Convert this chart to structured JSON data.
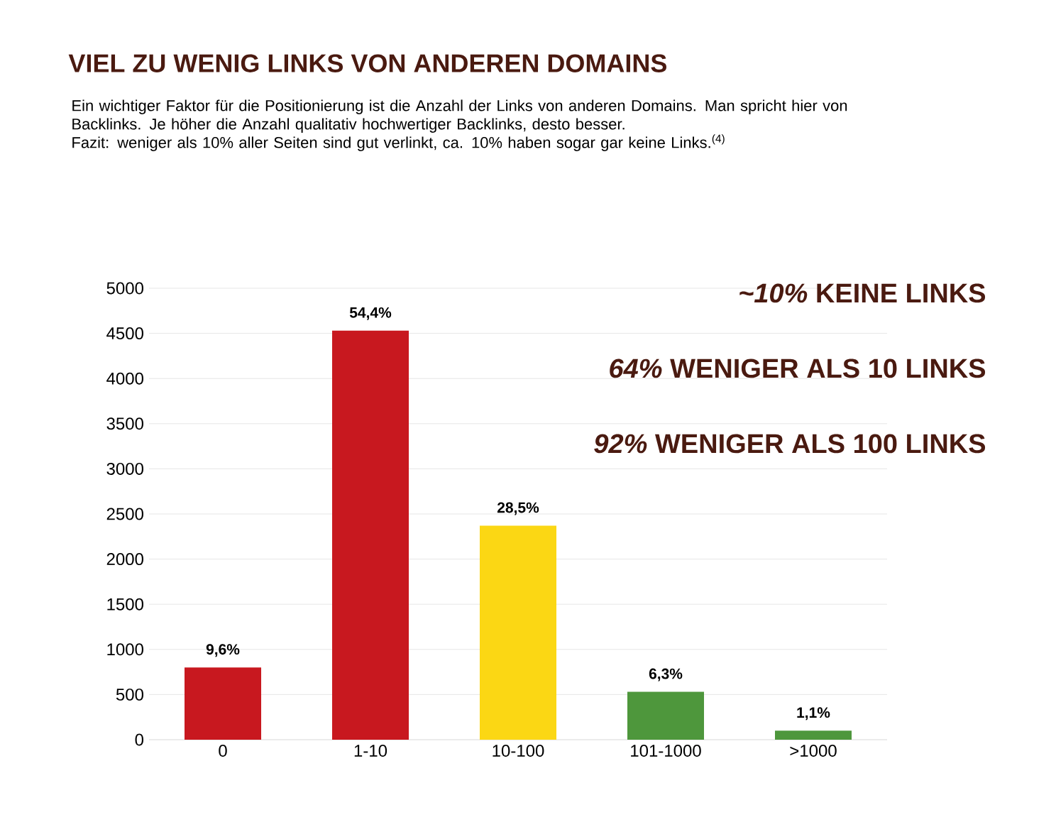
{
  "chart_data": {
    "type": "bar",
    "title": "VIEL ZU WENIG LINKS VON ANDEREN DOMAINS",
    "subtitle": "Ein wichtiger Faktor für die Positionierung ist die Anzahl der Links von anderen Domains. Man spricht hier von Backlinks. Je höher die Anzahl qualitativ hochwertiger Backlinks, desto besser.\nFazit: weniger als 10% aller Seiten sind gut verlinkt, ca. 10% haben sogar gar keine Links.$^{(4)}$",
    "categories": [
      "0",
      "1-10",
      "10-100",
      "101-1000",
      ">1000"
    ],
    "values": [
      800,
      4530,
      2370,
      530,
      100
    ],
    "colors": [
      "#c8181f",
      "#c8181f",
      "#fbd714",
      "#4e973c",
      "#4e973c"
    ],
    "ylim": [
      0,
      5000
    ],
    "yticks": [
      0,
      500,
      1000,
      1500,
      2000,
      2500,
      3000,
      3500,
      4000,
      4500,
      5000
    ],
    "grid": "y",
    "annotations": [
      {
        "text": "9,6%",
        "x": "0",
        "y": 800
      },
      {
        "text": "54,4%",
        "x": "1-10",
        "y": 4530
      },
      {
        "text": "28,5%",
        "x": "10-100",
        "y": 2370
      },
      {
        "text": "6,3%",
        "x": "101-1000",
        "y": 530
      },
      {
        "text": "1,1%",
        "x": ">1000",
        "y": 100
      },
      "*~10%* KEINE LINKS",
      "*64%* WENIGER ALS 10 LINKS",
      "*92%* WENIGER ALS 100 LINKS"
    ]
  }
}
